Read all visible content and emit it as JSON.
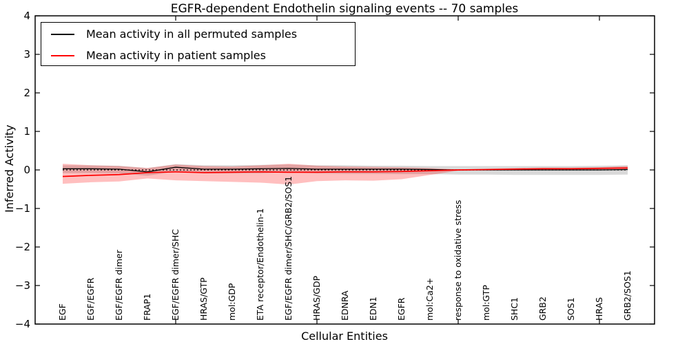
{
  "chart_data": {
    "type": "line",
    "title": "EGFR-dependent Endothelin signaling events -- 70 samples",
    "xlabel": "Cellular Entities",
    "ylabel": "Inferred Activity",
    "ylim": [
      -4,
      4
    ],
    "grid": false,
    "ytick_values": [
      4,
      3,
      2,
      1,
      0,
      -1,
      -2,
      -3,
      -4
    ],
    "ytick_labels": [
      "4",
      "3",
      "2",
      "1",
      "0",
      "−1",
      "−2",
      "−3",
      "−4"
    ],
    "xtick_mark_indices": [
      4,
      9,
      14,
      19
    ],
    "categories": [
      "EGF",
      "EGF/EGFR",
      "EGF/EGFR dimer",
      "FRAP1",
      "EGF/EGFR dimer/SHC",
      "HRAS/GTP",
      "mol:GDP",
      "ETA receptor/Endothelin-1",
      "EGF/EGFR dimer/SHC/GRB2/SOS1",
      "HRAS/GDP",
      "EDNRA",
      "EDN1",
      "EGFR",
      "mol:Ca2+",
      "response to oxidative stress",
      "mol:GTP",
      "SHC1",
      "GRB2",
      "SOS1",
      "HRAS",
      "GRB2/SOS1"
    ],
    "zero_line": 0,
    "series": [
      {
        "name": "Mean activity in all permuted samples",
        "color": "#000000",
        "values": [
          0.03,
          0.03,
          0.02,
          -0.05,
          0.07,
          0.02,
          0.02,
          0.03,
          0.04,
          0.02,
          0.02,
          0.02,
          0.02,
          0.01,
          0,
          0,
          0,
          0,
          0,
          0,
          0.01
        ]
      },
      {
        "name": "Mean activity in patient samples",
        "color": "#ff0000",
        "values": [
          -0.17,
          -0.14,
          -0.12,
          -0.07,
          -0.05,
          -0.07,
          -0.06,
          -0.05,
          -0.06,
          -0.06,
          -0.05,
          -0.05,
          -0.04,
          -0.02,
          0,
          0.01,
          0.02,
          0.03,
          0.03,
          0.04,
          0.05
        ]
      }
    ],
    "bands": [
      {
        "name": "permuted-std-band",
        "color": "#000000",
        "opacity": 0.15,
        "upper": [
          0.12,
          0.12,
          0.11,
          0.05,
          0.15,
          0.12,
          0.12,
          0.13,
          0.14,
          0.12,
          0.12,
          0.11,
          0.11,
          0.1,
          0.1,
          0.1,
          0.1,
          0.1,
          0.1,
          0.11,
          0.12
        ],
        "lower": [
          -0.08,
          -0.08,
          -0.09,
          -0.15,
          -0.04,
          -0.09,
          -0.09,
          -0.09,
          -0.06,
          -0.09,
          -0.1,
          -0.1,
          -0.11,
          -0.11,
          -0.12,
          -0.12,
          -0.13,
          -0.13,
          -0.13,
          -0.13,
          -0.12
        ]
      },
      {
        "name": "patient-std-band",
        "color": "#ff0000",
        "opacity": 0.25,
        "upper": [
          0.16,
          0.12,
          0.1,
          0.05,
          0.14,
          0.1,
          0.09,
          0.12,
          0.16,
          0.11,
          0.09,
          0.08,
          0.07,
          0.05,
          0.01,
          0.03,
          0.05,
          0.06,
          0.06,
          0.07,
          0.1
        ],
        "lower": [
          -0.36,
          -0.32,
          -0.3,
          -0.22,
          -0.27,
          -0.29,
          -0.31,
          -0.33,
          -0.38,
          -0.29,
          -0.27,
          -0.28,
          -0.24,
          -0.13,
          -0.02,
          -0.01,
          0,
          0,
          0,
          0.01,
          0.02
        ]
      }
    ],
    "legend": {
      "position": "upper left",
      "entries": [
        {
          "label": "Mean activity in all permuted samples",
          "color": "#000000"
        },
        {
          "label": "Mean activity in patient samples",
          "color": "#ff0000"
        }
      ]
    }
  }
}
